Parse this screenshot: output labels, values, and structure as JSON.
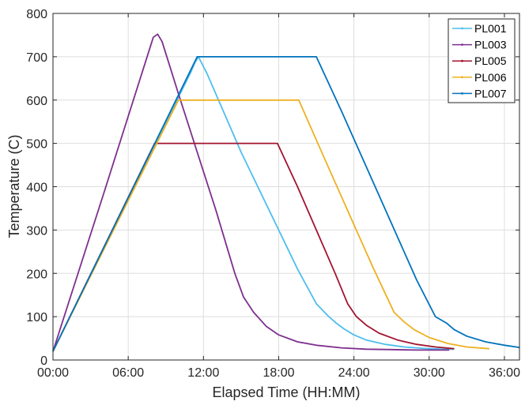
{
  "chart_data": {
    "type": "line",
    "xlabel": "Elapsed Time (HH:MM)",
    "ylabel": "Temperature (C)",
    "xlim": [
      0,
      37.2
    ],
    "ylim": [
      0,
      800
    ],
    "x_ticks": [
      {
        "value": 0,
        "label": "00:00"
      },
      {
        "value": 6,
        "label": "06:00"
      },
      {
        "value": 12,
        "label": "12:00"
      },
      {
        "value": 18,
        "label": "18:00"
      },
      {
        "value": 24,
        "label": "24:00"
      },
      {
        "value": 30,
        "label": "30:00"
      },
      {
        "value": 36,
        "label": "36:00"
      }
    ],
    "y_ticks": [
      0,
      100,
      200,
      300,
      400,
      500,
      600,
      700,
      800
    ],
    "grid": true,
    "legend_position": "top-right",
    "series": [
      {
        "name": "PL001",
        "color": "#4DBEEE",
        "x": [
          0,
          11.0,
          11.3,
          11.6,
          12.3,
          13.5,
          15.0,
          16.5,
          18.0,
          19.5,
          21.0,
          22.0,
          22.6,
          23.2,
          24.0,
          25.0,
          26.5,
          28.0,
          29.5,
          31.0,
          32.0
        ],
        "y": [
          20,
          665,
          685,
          700,
          660,
          580,
          480,
          390,
          300,
          210,
          130,
          100,
          85,
          72,
          58,
          46,
          36,
          30,
          27,
          25,
          25
        ]
      },
      {
        "name": "PL003",
        "color": "#7E2F8E",
        "x": [
          0,
          4.0,
          8.0,
          8.35,
          8.7,
          10.0,
          11.5,
          13.0,
          14.5,
          15.2,
          16.0,
          17.0,
          18.0,
          19.5,
          21.0,
          23.0,
          25.0,
          27.0,
          29.0,
          31.0,
          31.6
        ],
        "y": [
          20,
          380,
          745,
          752,
          735,
          615,
          480,
          345,
          200,
          145,
          110,
          78,
          58,
          42,
          34,
          28,
          25,
          24,
          23,
          23,
          23
        ]
      },
      {
        "name": "PL005",
        "color": "#A2142F",
        "x": [
          0,
          8.1,
          12.0,
          15.0,
          17.9,
          19.5,
          21.0,
          22.5,
          23.5,
          24.2,
          25.0,
          26.0,
          27.5,
          29.0,
          30.5,
          32.0
        ],
        "y": [
          20,
          500,
          500,
          500,
          500,
          400,
          300,
          200,
          130,
          100,
          80,
          62,
          46,
          36,
          30,
          26
        ]
      },
      {
        "name": "PL006",
        "color": "#EDB120",
        "x": [
          0,
          10.0,
          13.0,
          16.5,
          19.6,
          21.5,
          23.5,
          25.5,
          27.2,
          28.0,
          28.8,
          30.0,
          31.5,
          33.0,
          34.8
        ],
        "y": [
          20,
          600,
          600,
          600,
          600,
          475,
          345,
          215,
          110,
          88,
          70,
          52,
          38,
          30,
          26
        ]
      },
      {
        "name": "PL007",
        "color": "#0072BD",
        "x": [
          0,
          11.5,
          14.0,
          17.5,
          21.0,
          23.0,
          25.0,
          27.0,
          29.0,
          30.5,
          31.4,
          32.0,
          33.0,
          34.5,
          36.0,
          37.2
        ],
        "y": [
          20,
          700,
          700,
          700,
          700,
          575,
          445,
          315,
          185,
          100,
          85,
          70,
          55,
          42,
          34,
          29
        ]
      }
    ]
  }
}
